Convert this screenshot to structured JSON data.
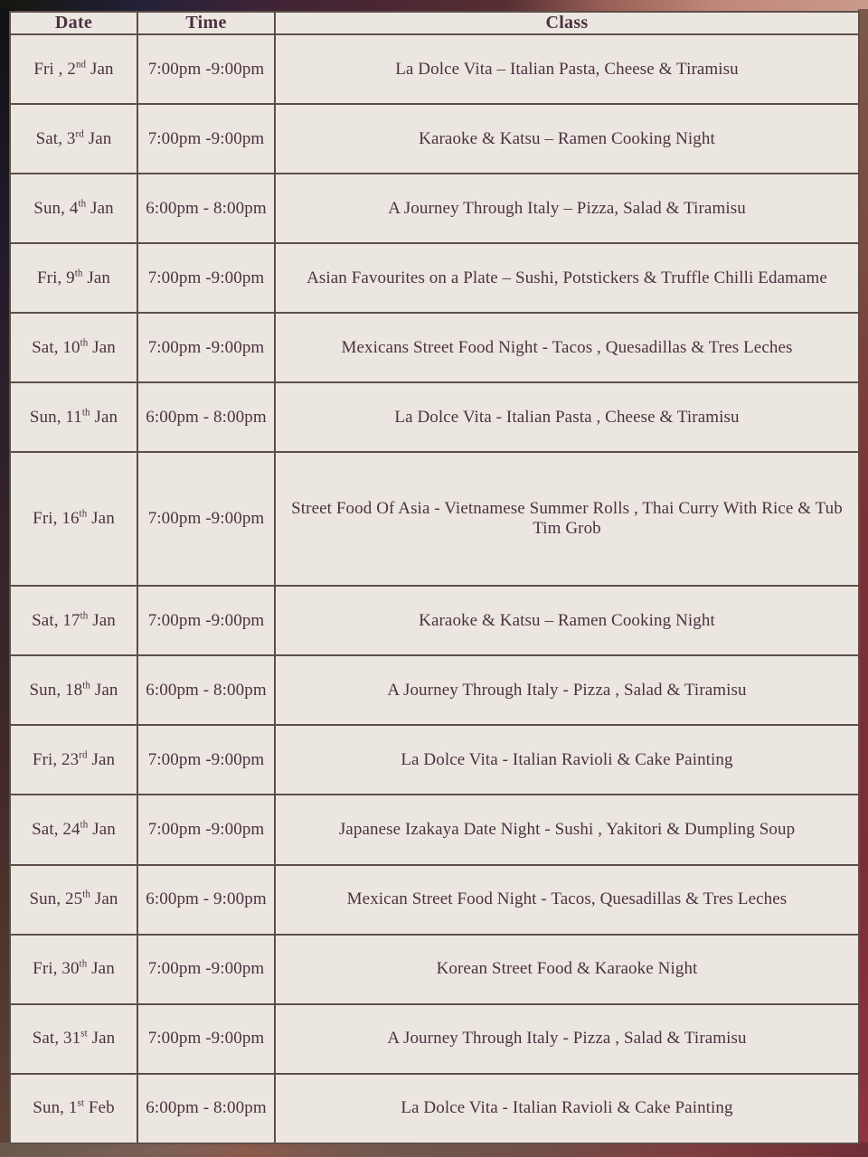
{
  "colors": {
    "table_background": "#ece6e1",
    "grid_border": "#5c4f49",
    "text": "#4b3240",
    "backdrop_top_left": "#15160e",
    "backdrop_top_right": "#c99a8b",
    "backdrop_bottom_right_red": "#7b2d35"
  },
  "table": {
    "headers": [
      "Date",
      "Time",
      "Class"
    ],
    "rows": [
      {
        "date_prefix": "Fri , 2",
        "date_sup": "nd",
        "date_suffix": " Jan",
        "time": "7:00pm -9:00pm",
        "class": "La Dolce Vita – Italian Pasta, Cheese & Tiramisu"
      },
      {
        "date_prefix": "Sat, 3",
        "date_sup": "rd",
        "date_suffix": " Jan",
        "time": "7:00pm -9:00pm",
        "class": "Karaoke & Katsu – Ramen Cooking Night"
      },
      {
        "date_prefix": "Sun, 4",
        "date_sup": "th",
        "date_suffix": " Jan",
        "time": "6:00pm - 8:00pm",
        "class": "A Journey Through Italy – Pizza, Salad & Tiramisu"
      },
      {
        "date_prefix": "Fri, 9",
        "date_sup": "th",
        "date_suffix": " Jan",
        "time": "7:00pm -9:00pm",
        "class": "Asian Favourites on a Plate – Sushi, Potstickers & Truffle Chilli Edamame"
      },
      {
        "date_prefix": "Sat, 10",
        "date_sup": "th",
        "date_suffix": " Jan",
        "time": "7:00pm -9:00pm",
        "class": "Mexicans Street Food Night - Tacos , Quesadillas & Tres Leches"
      },
      {
        "date_prefix": "Sun, 11",
        "date_sup": "th",
        "date_suffix": " Jan",
        "time": "6:00pm - 8:00pm",
        "class": "La Dolce Vita - Italian Pasta , Cheese & Tiramisu"
      },
      {
        "date_prefix": "Fri, 16",
        "date_sup": "th",
        "date_suffix": " Jan",
        "time": "7:00pm -9:00pm",
        "class": "Street Food Of Asia - Vietnamese Summer Rolls , Thai Curry With Rice & Tub Tim Grob"
      },
      {
        "date_prefix": "Sat, 17",
        "date_sup": "th",
        "date_suffix": " Jan",
        "time": "7:00pm -9:00pm",
        "class": "Karaoke & Katsu – Ramen Cooking Night"
      },
      {
        "date_prefix": "Sun, 18",
        "date_sup": "th",
        "date_suffix": " Jan",
        "time": "6:00pm - 8:00pm",
        "class": "A Journey Through Italy - Pizza , Salad & Tiramisu"
      },
      {
        "date_prefix": "Fri, 23",
        "date_sup": "rd",
        "date_suffix": " Jan",
        "time": "7:00pm -9:00pm",
        "class": "La Dolce Vita - Italian Ravioli & Cake Painting"
      },
      {
        "date_prefix": "Sat, 24",
        "date_sup": "th",
        "date_suffix": " Jan",
        "time": "7:00pm -9:00pm",
        "class": "Japanese Izakaya Date Night - Sushi , Yakitori & Dumpling Soup"
      },
      {
        "date_prefix": "Sun, 25",
        "date_sup": "th",
        "date_suffix": " Jan",
        "time": "6:00pm - 9:00pm",
        "class": "Mexican Street Food Night - Tacos, Quesadillas & Tres Leches"
      },
      {
        "date_prefix": "Fri, 30",
        "date_sup": "th",
        "date_suffix": " Jan",
        "time": "7:00pm -9:00pm",
        "class": "Korean Street Food & Karaoke Night"
      },
      {
        "date_prefix": "Sat, 31",
        "date_sup": "st",
        "date_suffix": " Jan",
        "time": "7:00pm -9:00pm",
        "class": "A Journey Through Italy - Pizza , Salad & Tiramisu"
      },
      {
        "date_prefix": "Sun, 1",
        "date_sup": "st",
        "date_suffix": " Feb",
        "time": "6:00pm - 8:00pm",
        "class": "La Dolce Vita - Italian Ravioli & Cake Painting"
      }
    ]
  }
}
